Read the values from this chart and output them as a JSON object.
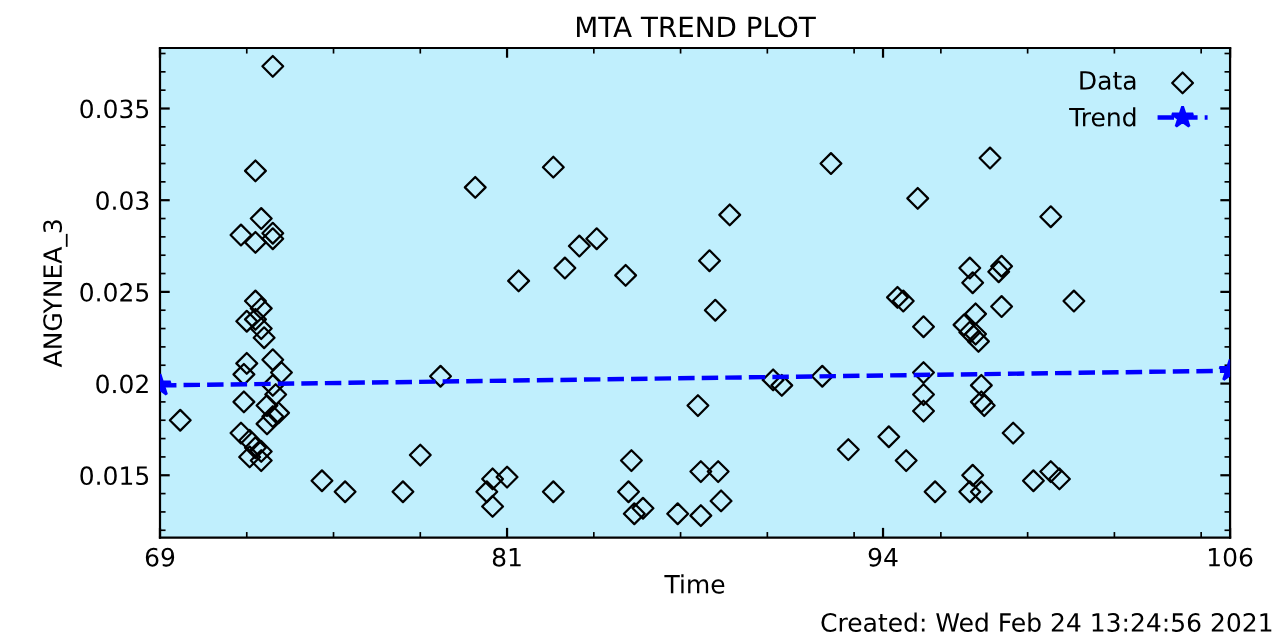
{
  "chart_data": {
    "type": "scatter",
    "title": "MTA TREND PLOT",
    "xlabel": "Time",
    "ylabel": "ANGYNEA_3",
    "xlim": [
      69,
      106
    ],
    "xticks": [
      69,
      81,
      94,
      106
    ],
    "ylim": [
      0.0116,
      0.0383
    ],
    "yticks": [
      0.015,
      0.02,
      0.025,
      0.03,
      0.035
    ],
    "grid": false,
    "legend": "top right",
    "marker": "diamond",
    "annotations": [
      "Created: Wed Feb 24 13:24:56 2021"
    ],
    "series": [
      {
        "name": "Data",
        "color": "#000000",
        "x": [
          69.7,
          71.8,
          72.3,
          72.5,
          72.3,
          72.9,
          72.9,
          72.9,
          72.3,
          72.5,
          72.0,
          72.3,
          72.5,
          72.6,
          72.0,
          71.9,
          72.9,
          73.2,
          72.9,
          73.0,
          72.7,
          72.9,
          73.1,
          71.9,
          71.8,
          72.1,
          72.5,
          72.3,
          72.5,
          72.1,
          72.7,
          74.6,
          75.4,
          77.4,
          78.0,
          78.7,
          79.9,
          80.3,
          80.5,
          80.5,
          82.6,
          81.4,
          83.5,
          84.1,
          83.0,
          85.1,
          88.0,
          88.7,
          88.2,
          92.2,
          94.5,
          94.7,
          87.6,
          90.2,
          90.5,
          91.9,
          92.8,
          94.2,
          85.3,
          81.0,
          82.6,
          85.2,
          85.4,
          85.7,
          86.9,
          87.7,
          87.7,
          88.3,
          88.4,
          94.8,
          95.2,
          97.7,
          99.8,
          97.0,
          97.1,
          98.1,
          98.0,
          95.4,
          98.1,
          100.6,
          97.2,
          96.8,
          97.0,
          97.2,
          97.3,
          95.4,
          95.4,
          95.4,
          97.4,
          97.4,
          97.5,
          98.5,
          95.8,
          97.1,
          97.0,
          97.4,
          99.2,
          99.8,
          100.1
        ],
        "values": [
          0.018,
          0.0281,
          0.0316,
          0.029,
          0.0277,
          0.0282,
          0.0279,
          0.0373,
          0.0245,
          0.0241,
          0.0234,
          0.0235,
          0.023,
          0.0225,
          0.0211,
          0.0205,
          0.0213,
          0.0206,
          0.0199,
          0.0194,
          0.0188,
          0.0182,
          0.0184,
          0.019,
          0.0173,
          0.0169,
          0.0163,
          0.0165,
          0.0158,
          0.016,
          0.0178,
          0.0147,
          0.0141,
          0.0141,
          0.0161,
          0.0204,
          0.0307,
          0.0141,
          0.0148,
          0.0133,
          0.0318,
          0.0256,
          0.0275,
          0.0279,
          0.0263,
          0.0259,
          0.0267,
          0.0292,
          0.024,
          0.032,
          0.0247,
          0.0245,
          0.0188,
          0.0202,
          0.0199,
          0.0204,
          0.0164,
          0.0171,
          0.0158,
          0.0149,
          0.0141,
          0.0141,
          0.0129,
          0.0132,
          0.0129,
          0.0128,
          0.0152,
          0.0152,
          0.0136,
          0.0158,
          0.0301,
          0.0323,
          0.0291,
          0.0263,
          0.0255,
          0.0264,
          0.0261,
          0.0231,
          0.0242,
          0.0245,
          0.0238,
          0.0232,
          0.0228,
          0.0227,
          0.0223,
          0.0206,
          0.0194,
          0.0185,
          0.0199,
          0.019,
          0.0188,
          0.0173,
          0.0141,
          0.015,
          0.0141,
          0.0141,
          0.0147,
          0.0152,
          0.0148
        ]
      },
      {
        "name": "Trend",
        "type": "line",
        "color": "#0000ff",
        "marker": "star",
        "line_style": "dashed",
        "x": [
          69,
          106
        ],
        "values": [
          0.0199,
          0.0207
        ]
      }
    ]
  }
}
